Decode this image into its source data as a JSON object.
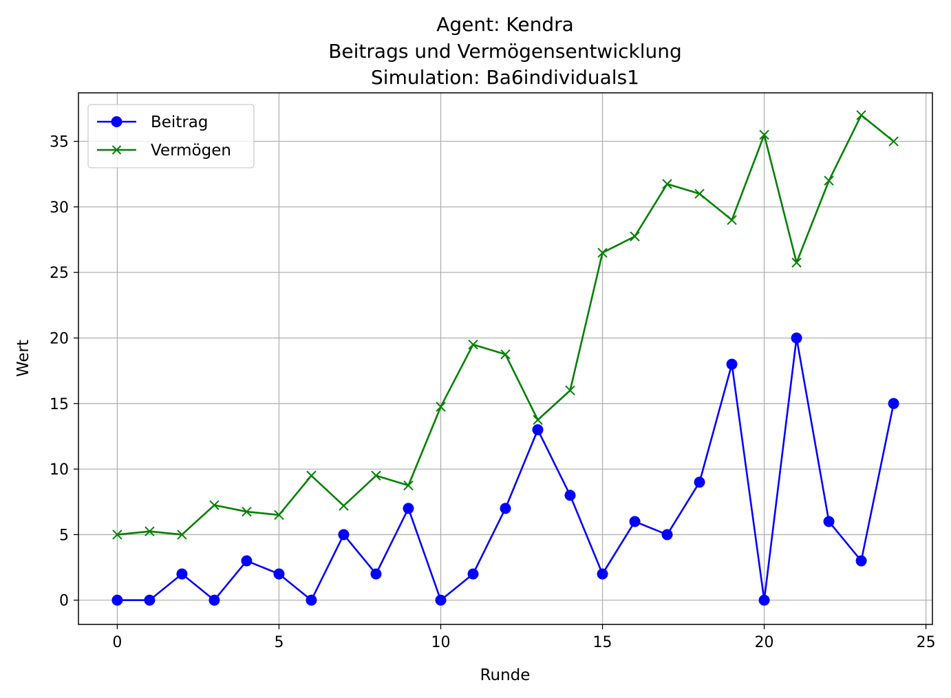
{
  "chart_data": {
    "type": "line",
    "title": [
      "Agent: Kendra",
      "Beitrags und Vermögensentwicklung",
      "Simulation: Ba6individuals1"
    ],
    "xlabel": "Runde",
    "ylabel": "Wert",
    "x": [
      0,
      1,
      2,
      3,
      4,
      5,
      6,
      7,
      8,
      9,
      10,
      11,
      12,
      13,
      14,
      15,
      16,
      17,
      18,
      19,
      20,
      21,
      22,
      23,
      24
    ],
    "xlim": [
      -1.2,
      25.2
    ],
    "ylim": [
      -1.85,
      38.7
    ],
    "xticks": [
      0,
      5,
      10,
      15,
      20,
      25
    ],
    "yticks": [
      0,
      5,
      10,
      15,
      20,
      25,
      30,
      35
    ],
    "grid": true,
    "legend_position": "upper left",
    "series": [
      {
        "name": "Beitrag",
        "color": "#0000ff",
        "marker": "circle",
        "values": [
          0,
          0,
          2,
          0,
          3,
          2,
          0,
          5,
          2,
          7,
          0,
          2,
          7,
          13,
          8,
          2,
          6,
          5,
          9,
          18,
          0,
          20,
          6,
          3,
          15
        ]
      },
      {
        "name": "Vermögen",
        "color": "#008000",
        "marker": "x",
        "values": [
          5,
          5.25,
          5,
          7.25,
          6.75,
          6.5,
          9.5,
          7.2,
          9.5,
          8.75,
          14.75,
          19.5,
          18.75,
          13.75,
          16,
          26.5,
          27.75,
          31.75,
          31,
          29,
          35.5,
          25.75,
          32,
          37,
          35
        ]
      }
    ]
  }
}
